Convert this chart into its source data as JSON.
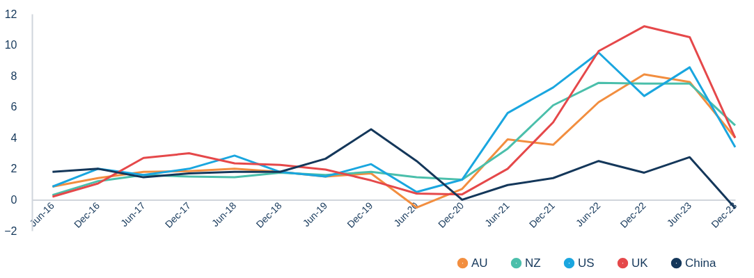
{
  "chart_data": {
    "type": "line",
    "categories": [
      "Jun-16",
      "Dec-16",
      "Jun-17",
      "Dec-17",
      "Jun-18",
      "Dec-18",
      "Jun-19",
      "Dec-19",
      "Jun-20",
      "Dec-20",
      "Jun-21",
      "Dec-21",
      "Jun-22",
      "Dec-22",
      "Jun-23",
      "Dec-23"
    ],
    "series": [
      {
        "name": "AU",
        "color": "#f28e3f",
        "values": [
          0.85,
          1.4,
          1.8,
          1.85,
          2.0,
          1.8,
          1.5,
          1.7,
          -0.5,
          0.7,
          3.9,
          3.55,
          6.3,
          8.1,
          7.6,
          4.0
        ]
      },
      {
        "name": "NZ",
        "color": "#4bbfab",
        "values": [
          0.3,
          1.2,
          1.6,
          1.5,
          1.45,
          1.75,
          1.6,
          1.8,
          1.45,
          1.3,
          3.3,
          6.1,
          7.55,
          7.5,
          7.5,
          4.8
        ]
      },
      {
        "name": "US",
        "color": "#1aa6df",
        "values": [
          0.85,
          2.0,
          1.6,
          2.0,
          2.85,
          1.8,
          1.5,
          2.3,
          0.5,
          1.3,
          5.6,
          7.25,
          9.5,
          6.7,
          8.55,
          3.4
        ]
      },
      {
        "name": "UK",
        "color": "#e5484a",
        "values": [
          0.2,
          1.05,
          2.7,
          3.0,
          2.35,
          2.25,
          1.95,
          1.25,
          0.4,
          0.35,
          2.0,
          5.0,
          9.6,
          11.2,
          10.5,
          4.0
        ]
      },
      {
        "name": "China",
        "color": "#14375a",
        "values": [
          1.8,
          2.0,
          1.45,
          1.7,
          1.8,
          1.8,
          2.65,
          4.55,
          2.5,
          0.0,
          0.95,
          1.4,
          2.5,
          1.75,
          2.75,
          -0.55
        ]
      }
    ],
    "ylim": [
      -2,
      12
    ],
    "yticks": [
      -2,
      0,
      2,
      4,
      6,
      8,
      10,
      12
    ],
    "legend": "bottom right",
    "grid": false
  }
}
